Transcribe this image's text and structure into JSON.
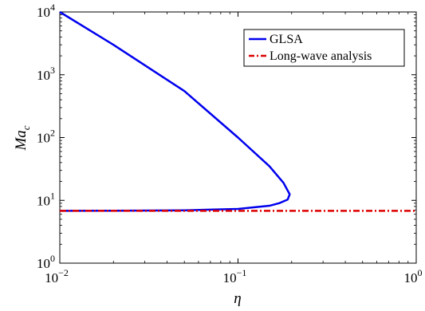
{
  "chart_data": {
    "type": "line",
    "xlabel": "η",
    "ylabel": "Ma",
    "ylabel_subscript": "c",
    "xscale": "log",
    "yscale": "log",
    "xlim": [
      0.01,
      1
    ],
    "ylim": [
      1,
      10000
    ],
    "x_ticks": [
      {
        "value": 0.01,
        "base": "10",
        "exp": "−2"
      },
      {
        "value": 0.1,
        "base": "10",
        "exp": "−1"
      },
      {
        "value": 1,
        "base": "10",
        "exp": "0"
      }
    ],
    "y_ticks": [
      {
        "value": 1,
        "base": "10",
        "exp": "0"
      },
      {
        "value": 10,
        "base": "10",
        "exp": "1"
      },
      {
        "value": 100,
        "base": "10",
        "exp": "2"
      },
      {
        "value": 1000,
        "base": "10",
        "exp": "3"
      },
      {
        "value": 10000,
        "base": "10",
        "exp": "4"
      }
    ],
    "grid": false,
    "legend_position": "top-right",
    "series": [
      {
        "name": "GLSA",
        "color": "#0000ee",
        "style": "solid",
        "points": [
          [
            0.01,
            10000
          ],
          [
            0.02,
            3000
          ],
          [
            0.05,
            550
          ],
          [
            0.1,
            100
          ],
          [
            0.15,
            35
          ],
          [
            0.18,
            19
          ],
          [
            0.195,
            12.5
          ],
          [
            0.19,
            10.3
          ],
          [
            0.17,
            9
          ],
          [
            0.15,
            8.2
          ],
          [
            0.1,
            7.3
          ],
          [
            0.05,
            6.95
          ],
          [
            0.02,
            6.85
          ],
          [
            0.01,
            6.82
          ]
        ]
      },
      {
        "name": "Long-wave analysis",
        "color": "#dd0000",
        "style": "dashdot",
        "points": [
          [
            0.01,
            6.82
          ],
          [
            1,
            6.82
          ]
        ]
      }
    ]
  }
}
